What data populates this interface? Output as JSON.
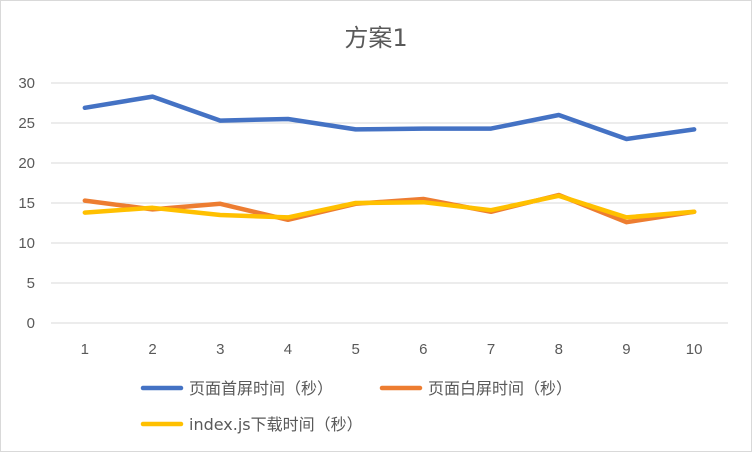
{
  "chart_data": {
    "type": "line",
    "title": "方案1",
    "xlabel": "",
    "ylabel": "",
    "categories": [
      "1",
      "2",
      "3",
      "4",
      "5",
      "6",
      "7",
      "8",
      "9",
      "10"
    ],
    "ylim": [
      0,
      30
    ],
    "yticks": [
      0,
      5,
      10,
      15,
      20,
      25,
      30
    ],
    "grid": "horizontal",
    "legend_position": "bottom",
    "series": [
      {
        "name": "页面首屏时间（秒）",
        "color": "#4472C4",
        "values": [
          26.9,
          28.3,
          25.3,
          25.5,
          24.2,
          24.3,
          24.3,
          26.0,
          23.0,
          24.2
        ]
      },
      {
        "name": "页面白屏时间（秒）",
        "color": "#ED7D31",
        "values": [
          15.3,
          14.2,
          14.9,
          12.9,
          14.9,
          15.5,
          13.9,
          16.0,
          12.6,
          13.9
        ]
      },
      {
        "name": "index.js下载时间（秒）",
        "color": "#FFC000",
        "values": [
          13.8,
          14.4,
          13.5,
          13.2,
          15.0,
          15.1,
          14.1,
          15.9,
          13.2,
          13.9
        ]
      }
    ]
  }
}
